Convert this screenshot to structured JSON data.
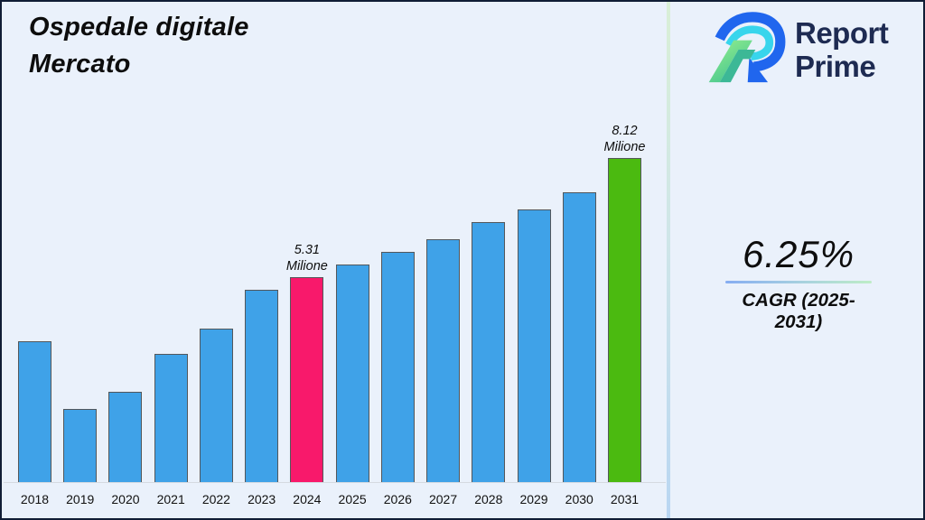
{
  "page": {
    "background_color": "#EAF1FB",
    "frame_border_color": "#101D35"
  },
  "header": {
    "title": "Ospedale digitale\nMercato"
  },
  "brand": {
    "name": "Report\nPrime",
    "text_color": "#1E2B52",
    "logo_colors": {
      "blue": "#2066EE",
      "cyan": "#38D5EC",
      "light_green": "#98F08E",
      "teal": "#3CB896"
    }
  },
  "right_panel": {
    "cagr_value": "6.25%",
    "cagr_label": "CAGR (2025-2031)"
  },
  "chart_data": {
    "type": "bar",
    "title": "Ospedale digitale Mercato",
    "unit": "Milione",
    "categories": [
      "2018",
      "2019",
      "2020",
      "2021",
      "2022",
      "2023",
      "2024",
      "2025",
      "2026",
      "2027",
      "2028",
      "2029",
      "2030",
      "2031"
    ],
    "values": [
      3.8,
      2.2,
      2.6,
      3.5,
      4.1,
      5.0,
      5.31,
      5.6,
      5.9,
      6.2,
      6.6,
      6.9,
      7.3,
      8.12
    ],
    "bar_color_default": "#3FA2E8",
    "annotations": [
      {
        "category": "2024",
        "value": 5.31,
        "label": "5.31\nMilione",
        "color": "#F8196B"
      },
      {
        "category": "2031",
        "value": 8.12,
        "label": "8.12\nMilione",
        "color": "#4BBA10"
      }
    ],
    "xlabel": "",
    "ylabel": "",
    "ylim": [
      0,
      9
    ],
    "grid": false,
    "legend": false
  }
}
